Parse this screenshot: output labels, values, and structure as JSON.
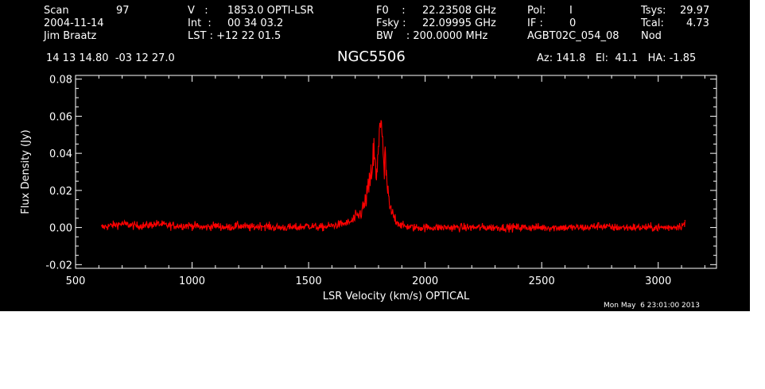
{
  "header": {
    "scan_label": "Scan",
    "scan_number": "97",
    "date": "2004-11-14",
    "observer": "Jim Braatz",
    "velocity_label": "V   :",
    "velocity_value": "1853.0 OPTI-LSR",
    "int_label": "Int  :",
    "int_value": "00 34 03.2",
    "lst_label": "LST : +12 22 01.5",
    "f0_label": "F0    :",
    "f0_value": "22.23508 GHz",
    "fsky_label": "Fsky :",
    "fsky_value": "22.09995 GHz",
    "bw_label": "BW    : 200.0000 MHz",
    "pol_label": "Pol:",
    "pol_value": "I",
    "if_label": "IF :",
    "if_value": "0",
    "project": "AGBT02C_054_08",
    "tsys_label": "Tsys:",
    "tsys_value": "29.97",
    "tcal_label": "Tcal:",
    "tcal_value": "4.73",
    "mode": "Nod",
    "coordinates": "14 13 14.80  -03 12 27.0",
    "source": "NGC5506",
    "az_el_ha": "Az: 141.8   El:  41.1   HA: -1.85"
  },
  "timestamp": "Mon May  6 23:01:00 2013",
  "colors": {
    "background": "#000000",
    "axes": "#ffffff",
    "trace": "#ff0000"
  },
  "chart_data": {
    "type": "line",
    "title": "NGC5506",
    "xlabel": "LSR Velocity (km/s) OPTICAL",
    "ylabel": "Flux Density (Jy)",
    "xlim": [
      500,
      3250
    ],
    "ylim": [
      -0.022,
      0.082
    ],
    "xticks": [
      500,
      1000,
      1500,
      2000,
      2500,
      3000
    ],
    "xtick_labels": [
      "500",
      "1000",
      "1500",
      "2000",
      "2500",
      "3000"
    ],
    "yticks": [
      -0.02,
      0.0,
      0.02,
      0.04,
      0.06,
      0.08
    ],
    "ytick_labels": [
      "-0.02",
      "0.00",
      "0.02",
      "0.04",
      "0.06",
      "0.08"
    ],
    "grid": false,
    "legend": "none",
    "series": [
      {
        "x": [
          610,
          650,
          700,
          750,
          800,
          850,
          900,
          950,
          1000,
          1050,
          1100,
          1150,
          1200,
          1250,
          1300,
          1350,
          1400,
          1450,
          1500,
          1550,
          1600,
          1650,
          1680,
          1700,
          1720,
          1730,
          1740,
          1750,
          1760,
          1765,
          1770,
          1775,
          1780,
          1785,
          1790,
          1795,
          1800,
          1805,
          1810,
          1815,
          1820,
          1825,
          1830,
          1835,
          1840,
          1845,
          1850,
          1860,
          1870,
          1880,
          1890,
          1900,
          1950,
          2000,
          2050,
          2100,
          2150,
          2200,
          2250,
          2300,
          2350,
          2400,
          2450,
          2500,
          2550,
          2600,
          2650,
          2700,
          2750,
          2800,
          2850,
          2900,
          2950,
          3000,
          3050,
          3100,
          3115
        ],
        "y": [
          0.0,
          0.001,
          0.002,
          0.001,
          0.001,
          0.002,
          0.001,
          0.001,
          0.001,
          0.0,
          0.001,
          0.0,
          0.001,
          0.0,
          0.001,
          0.0,
          0.0,
          0.0,
          0.001,
          0.0,
          0.001,
          0.002,
          0.003,
          0.005,
          0.007,
          0.01,
          0.012,
          0.018,
          0.022,
          0.025,
          0.03,
          0.036,
          0.04,
          0.035,
          0.025,
          0.03,
          0.045,
          0.058,
          0.062,
          0.05,
          0.035,
          0.03,
          0.038,
          0.025,
          0.018,
          0.013,
          0.01,
          0.007,
          0.005,
          0.003,
          0.002,
          0.001,
          0.0,
          0.0,
          0.0,
          0.0,
          0.0,
          0.0,
          0.0,
          0.0,
          0.0,
          0.0,
          0.0,
          0.0,
          0.0,
          0.0,
          0.0,
          0.0,
          0.001,
          0.0,
          0.0,
          0.0,
          0.0,
          0.0,
          0.0,
          0.001,
          0.002
        ]
      }
    ]
  }
}
